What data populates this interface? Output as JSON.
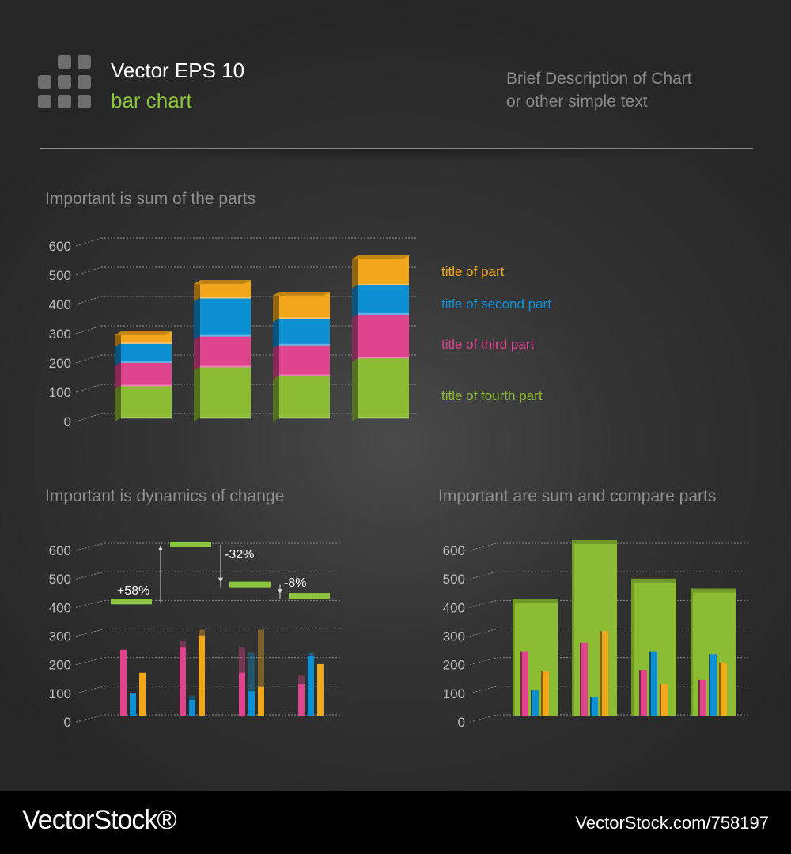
{
  "header": {
    "title": "Vector EPS 10",
    "subtitle": "bar chart",
    "description_line1": "Brief Description of Chart",
    "description_line2": "or other simple text"
  },
  "footer": {
    "brand": "VectorStock®",
    "image_ref": "VectorStock.com/758197"
  },
  "colors": {
    "orange": "#f2a71b",
    "blue": "#0d8fd4",
    "pink": "#e0448d",
    "green": "#8cbb34",
    "axis_text": "#bdbdbd",
    "title_text": "#8f8f8f"
  },
  "chart_data": [
    {
      "type": "bar",
      "stacked": true,
      "title": "Important is sum of the parts",
      "y_ticks": [
        "0",
        "100",
        "200",
        "300",
        "400",
        "500",
        "600"
      ],
      "ylim": [
        0,
        600
      ],
      "categories": [
        "",
        "",
        "",
        ""
      ],
      "series": [
        {
          "name": "title of fourth part",
          "color": "#8cbb34",
          "values": [
            110,
            175,
            145,
            205
          ]
        },
        {
          "name": "title of third part",
          "color": "#e0448d",
          "values": [
            80,
            105,
            105,
            150
          ]
        },
        {
          "name": "title of second part",
          "color": "#0d8fd4",
          "values": [
            65,
            130,
            90,
            100
          ]
        },
        {
          "name": "title of part",
          "color": "#f2a71b",
          "values": [
            40,
            60,
            90,
            100
          ]
        }
      ],
      "legend_placement": "right",
      "grid": true
    },
    {
      "type": "bar",
      "title": "Important is dynamics of change",
      "y_ticks": [
        "0",
        "100",
        "200",
        "300",
        "400",
        "500",
        "600"
      ],
      "ylim": [
        0,
        600
      ],
      "categories": [
        "",
        "",
        "",
        ""
      ],
      "series": [
        {
          "color": "#e0448d",
          "values": [
            230,
            240,
            150,
            110
          ]
        },
        {
          "color": "#0d8fd4",
          "values": [
            80,
            55,
            85,
            210
          ]
        },
        {
          "color": "#f2a71b",
          "values": [
            150,
            280,
            100,
            180
          ]
        }
      ],
      "shadow_series": [
        {
          "color": "#e0448d",
          "values": [
            0,
            260,
            240,
            140
          ]
        },
        {
          "color": "#0d8fd4",
          "values": [
            0,
            70,
            220,
            220
          ]
        },
        {
          "color": "#f2a71b",
          "values": [
            0,
            300,
            300,
            0
          ]
        }
      ],
      "totals": [
        400,
        600,
        460,
        420
      ],
      "annotations": [
        "+58%",
        "-32%",
        "-8%"
      ],
      "grid": true
    },
    {
      "type": "bar",
      "title": "Important are sum and compare parts",
      "y_ticks": [
        "0",
        "100",
        "200",
        "300",
        "400",
        "500",
        "600"
      ],
      "ylim": [
        0,
        600
      ],
      "categories": [
        "",
        "",
        "",
        ""
      ],
      "totals": [
        395,
        600,
        465,
        430
      ],
      "series": [
        {
          "color": "#e0448d",
          "values": [
            225,
            255,
            160,
            125
          ]
        },
        {
          "color": "#0d8fd4",
          "values": [
            90,
            65,
            225,
            215
          ]
        },
        {
          "color": "#f2a71b",
          "values": [
            155,
            295,
            110,
            185
          ]
        }
      ],
      "grid": true
    }
  ]
}
